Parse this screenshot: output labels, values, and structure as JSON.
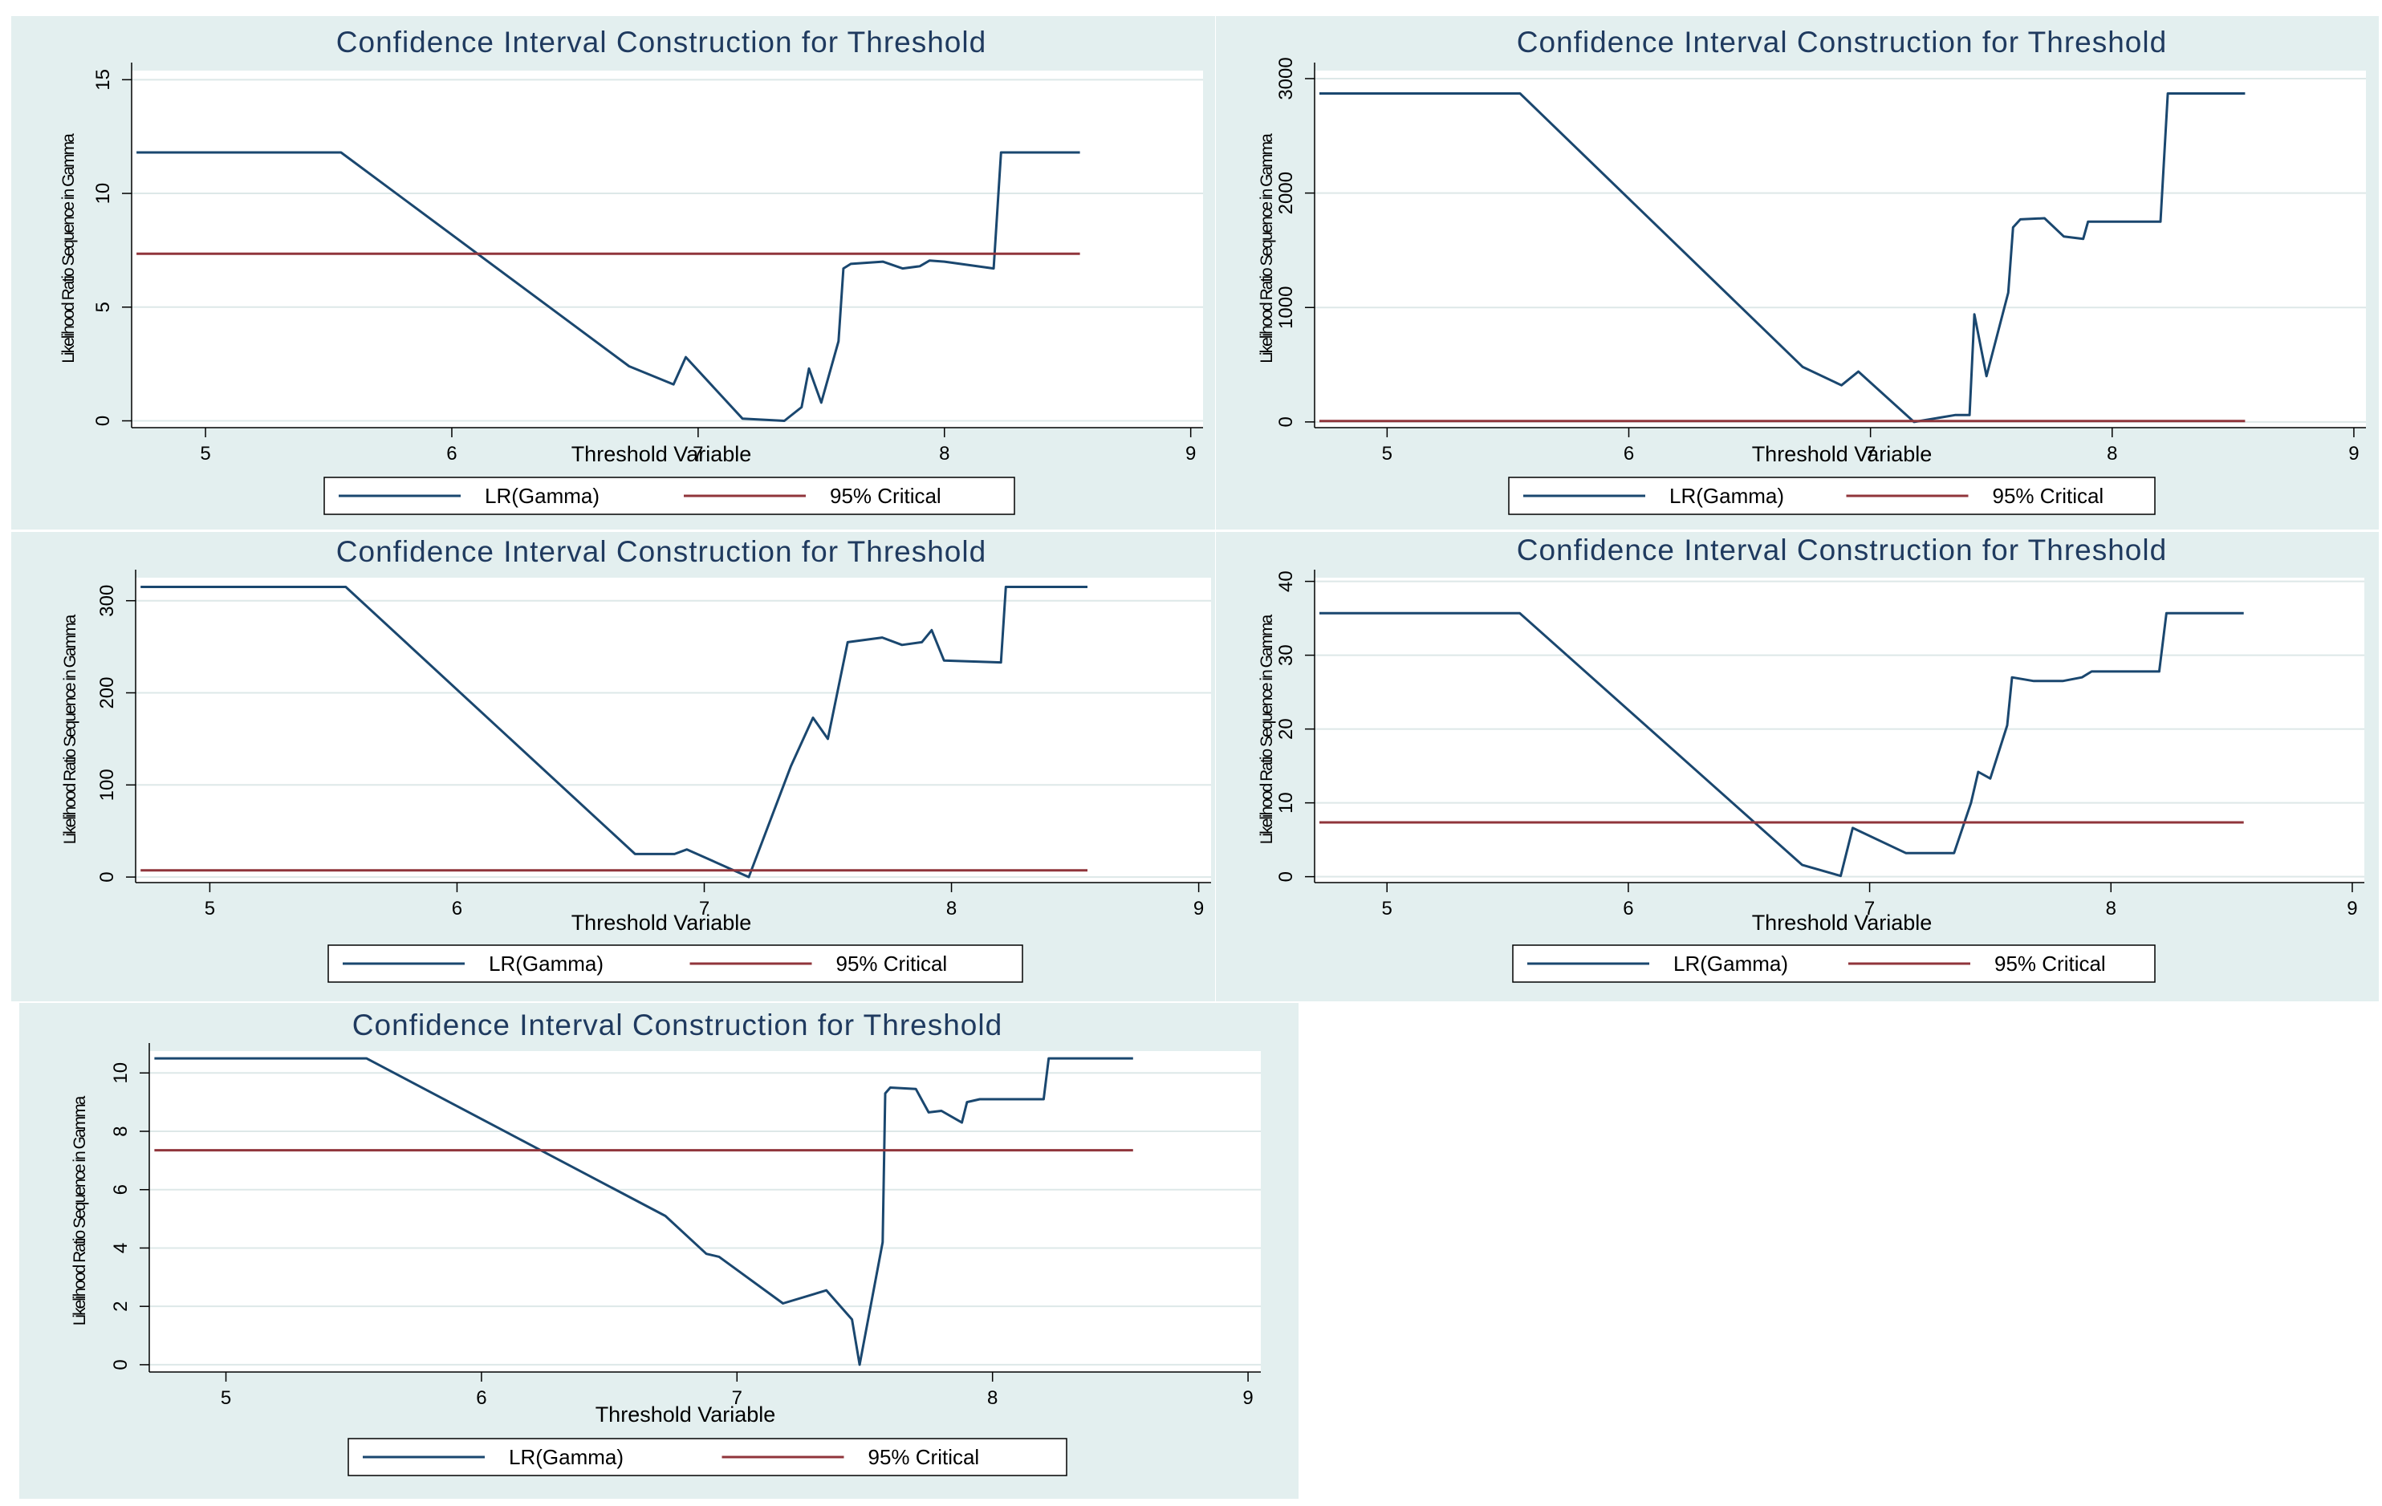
{
  "colors": {
    "background": "#e3efef",
    "plot": "#ffffff",
    "lr": "#1a476f",
    "critical": "#90353b",
    "grid": "#dde8e8"
  },
  "chart_data": [
    {
      "type": "line",
      "title": "Confidence Interval Construction for Threshold",
      "xlabel": "Threshold Variable",
      "ylabel": "Likelihood Ratio Sequence in Gamma",
      "xlim": [
        4.7,
        9.05
      ],
      "ylim": [
        -0.3,
        15.4
      ],
      "xticks": [
        5,
        6,
        7,
        8,
        9
      ],
      "yticks": [
        0,
        5,
        10,
        15
      ],
      "xtick_labels": [
        "5",
        "6",
        "7",
        "8",
        "9"
      ],
      "ytick_labels": [
        "0",
        "5",
        "10",
        "15"
      ],
      "legend": [
        "LR(Gamma)",
        "95% Critical"
      ],
      "series": [
        {
          "name": "LR(Gamma)",
          "x": [
            4.72,
            5.55,
            6.72,
            6.9,
            6.95,
            7.18,
            7.35,
            7.42,
            7.45,
            7.5,
            7.57,
            7.59,
            7.62,
            7.75,
            7.83,
            7.9,
            7.94,
            8.0,
            8.2,
            8.23,
            8.55
          ],
          "y": [
            11.8,
            11.8,
            2.4,
            1.6,
            2.8,
            0.1,
            0.0,
            0.6,
            2.3,
            0.8,
            3.5,
            6.7,
            6.9,
            7.0,
            6.7,
            6.8,
            7.05,
            7.0,
            6.7,
            11.8,
            11.8
          ]
        },
        {
          "name": "95% Critical",
          "x": [
            4.72,
            8.55
          ],
          "y": [
            7.35,
            7.35
          ]
        }
      ]
    },
    {
      "type": "line",
      "title": "Confidence Interval Construction for Threshold",
      "xlabel": "Threshold Variable",
      "ylabel": "Likelihood Ratio Sequence in Gamma",
      "xlim": [
        4.7,
        9.05
      ],
      "ylim": [
        -50,
        3070
      ],
      "xticks": [
        5,
        6,
        7,
        8,
        9
      ],
      "yticks": [
        0,
        1000,
        2000,
        3000
      ],
      "xtick_labels": [
        "5",
        "6",
        "7",
        "8",
        "9"
      ],
      "ytick_labels": [
        "0",
        "1000",
        "2000",
        "3000"
      ],
      "legend": [
        "LR(Gamma)",
        "95% Critical"
      ],
      "series": [
        {
          "name": "LR(Gamma)",
          "x": [
            4.72,
            5.55,
            6.72,
            6.88,
            6.95,
            7.18,
            7.35,
            7.41,
            7.43,
            7.48,
            7.57,
            7.59,
            7.62,
            7.72,
            7.8,
            7.88,
            7.9,
            8.2,
            8.23,
            8.55
          ],
          "y": [
            2870,
            2870,
            480,
            320,
            440,
            0,
            60,
            60,
            940,
            400,
            1130,
            1700,
            1770,
            1780,
            1620,
            1600,
            1750,
            1750,
            2870,
            2870
          ]
        },
        {
          "name": "95% Critical",
          "x": [
            4.72,
            8.55
          ],
          "y": [
            7.35,
            7.35
          ]
        }
      ]
    },
    {
      "type": "line",
      "title": "Confidence Interval Construction for Threshold",
      "xlabel": "Threshold Variable",
      "ylabel": "Likelihood Ratio Sequence in Gamma",
      "xlim": [
        4.7,
        9.05
      ],
      "ylim": [
        -6,
        325
      ],
      "xticks": [
        5,
        6,
        7,
        8,
        9
      ],
      "yticks": [
        0,
        100,
        200,
        300
      ],
      "xtick_labels": [
        "5",
        "6",
        "7",
        "8",
        "9"
      ],
      "ytick_labels": [
        "0",
        "100",
        "200",
        "300"
      ],
      "legend": [
        "LR(Gamma)",
        "95% Critical"
      ],
      "series": [
        {
          "name": "LR(Gamma)",
          "x": [
            4.72,
            5.55,
            6.72,
            6.88,
            6.93,
            7.18,
            7.35,
            7.44,
            7.5,
            7.58,
            7.72,
            7.8,
            7.88,
            7.92,
            7.97,
            8.2,
            8.22,
            8.55
          ],
          "y": [
            315,
            315,
            25,
            25,
            30,
            0,
            120,
            173,
            150,
            255,
            260,
            252,
            255,
            268,
            235,
            233,
            315,
            315
          ]
        },
        {
          "name": "95% Critical",
          "x": [
            4.72,
            8.55
          ],
          "y": [
            7.35,
            7.35
          ]
        }
      ]
    },
    {
      "type": "line",
      "title": "Confidence Interval Construction for Threshold",
      "xlabel": "Threshold Variable",
      "ylabel": "Likelihood Ratio Sequence in Gamma",
      "xlim": [
        4.7,
        9.05
      ],
      "ylim": [
        -0.8,
        40.5
      ],
      "xticks": [
        5,
        6,
        7,
        8,
        9
      ],
      "yticks": [
        0,
        10,
        20,
        30,
        40
      ],
      "xtick_labels": [
        "5",
        "6",
        "7",
        "8",
        "9"
      ],
      "ytick_labels": [
        "0",
        "10",
        "20",
        "30",
        "40"
      ],
      "legend": [
        "LR(Gamma)",
        "95% Critical"
      ],
      "series": [
        {
          "name": "LR(Gamma)",
          "x": [
            4.72,
            5.55,
            6.72,
            6.88,
            6.93,
            7.15,
            7.35,
            7.42,
            7.45,
            7.5,
            7.57,
            7.59,
            7.68,
            7.8,
            7.88,
            7.92,
            8.2,
            8.23,
            8.55
          ],
          "y": [
            35.7,
            35.7,
            1.6,
            0.1,
            6.6,
            3.2,
            3.2,
            10.0,
            14.2,
            13.3,
            20.5,
            27.0,
            26.5,
            26.5,
            27.0,
            27.8,
            27.8,
            35.7,
            35.7
          ]
        },
        {
          "name": "95% Critical",
          "x": [
            4.72,
            8.55
          ],
          "y": [
            7.35,
            7.35
          ]
        }
      ]
    },
    {
      "type": "line",
      "title": "Confidence Interval Construction for Threshold",
      "xlabel": "Threshold Variable",
      "ylabel": "Likelihood Ratio Sequence in Gamma",
      "xlim": [
        4.7,
        9.05
      ],
      "ylim": [
        -0.25,
        10.75
      ],
      "xticks": [
        5,
        6,
        7,
        8,
        9
      ],
      "yticks": [
        0,
        2,
        4,
        6,
        8,
        10
      ],
      "xtick_labels": [
        "5",
        "6",
        "7",
        "8",
        "9"
      ],
      "ytick_labels": [
        "0",
        "2",
        "4",
        "6",
        "8",
        "10"
      ],
      "legend": [
        "LR(Gamma)",
        "95% Critical"
      ],
      "series": [
        {
          "name": "LR(Gamma)",
          "x": [
            4.72,
            5.55,
            6.72,
            6.88,
            6.93,
            7.18,
            7.35,
            7.45,
            7.48,
            7.57,
            7.58,
            7.6,
            7.7,
            7.75,
            7.8,
            7.88,
            7.9,
            7.95,
            8.2,
            8.22,
            8.55
          ],
          "y": [
            10.5,
            10.5,
            5.1,
            3.8,
            3.7,
            2.1,
            2.55,
            1.55,
            0.0,
            4.2,
            9.3,
            9.5,
            9.45,
            8.65,
            8.7,
            8.3,
            9.0,
            9.1,
            9.1,
            10.5,
            10.5
          ]
        },
        {
          "name": "95% Critical",
          "x": [
            4.72,
            8.55
          ],
          "y": [
            7.35,
            7.35
          ]
        }
      ]
    }
  ]
}
